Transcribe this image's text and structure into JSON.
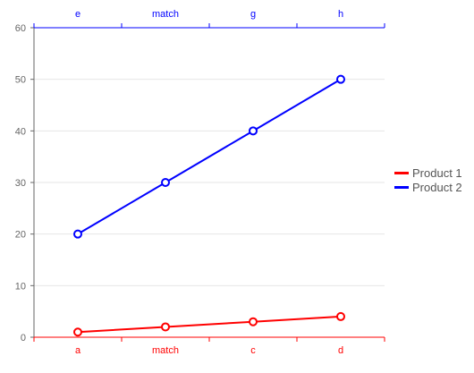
{
  "chart_data": {
    "type": "line",
    "categories_bottom": [
      "a",
      "match",
      "c",
      "d"
    ],
    "categories_top": [
      "e",
      "match",
      "g",
      "h"
    ],
    "ylim": [
      0,
      60
    ],
    "y_ticks": [
      0,
      10,
      20,
      30,
      40,
      50,
      60
    ],
    "grid": true,
    "legend_position": "right",
    "series": [
      {
        "name": "Product 1",
        "color": "#ff0000",
        "x_axis": "bottom",
        "values": [
          1,
          2,
          3,
          4
        ]
      },
      {
        "name": "Product 2",
        "color": "#0000ff",
        "x_axis": "top",
        "values": [
          20,
          30,
          40,
          50
        ]
      }
    ],
    "axis_colors": {
      "bottom": "#ff0000",
      "top": "#0000ff",
      "left": "#666666"
    }
  },
  "legend": {
    "items": [
      {
        "label": "Product 1",
        "color": "#ff0000"
      },
      {
        "label": "Product 2",
        "color": "#0000ff"
      }
    ]
  }
}
